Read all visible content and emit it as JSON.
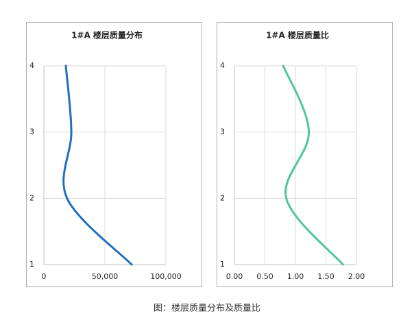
{
  "chart_data": [
    {
      "type": "line",
      "title": "1#A 楼层质量分布",
      "y": [
        1,
        2,
        3,
        4
      ],
      "series": [
        {
          "color": "#1f6fbf",
          "values": [
            72000,
            19000,
            22500,
            18000
          ]
        }
      ],
      "xlim": [
        0,
        100000
      ],
      "xticks": [
        0,
        {
          "value": 50000,
          "label": "50,000"
        },
        {
          "value": 100000,
          "label": "100,000"
        }
      ],
      "ylim": [
        1,
        4
      ],
      "yticks": [
        1,
        2,
        3,
        4
      ],
      "grid": true
    },
    {
      "type": "line",
      "title": "1#A 楼层质量比",
      "y": [
        1,
        2,
        3,
        4
      ],
      "series": [
        {
          "color": "#4fc4a0",
          "values": [
            1.78,
            0.85,
            1.22,
            0.8
          ]
        }
      ],
      "xlim": [
        0,
        2
      ],
      "xticks": [
        {
          "value": 0,
          "label": "0.00"
        },
        {
          "value": 0.5,
          "label": "0.50"
        },
        {
          "value": 1,
          "label": "1.00"
        },
        {
          "value": 1.5,
          "label": "1.50"
        },
        {
          "value": 2,
          "label": "2.00"
        }
      ],
      "ylim": [
        1,
        4
      ],
      "yticks": [
        1,
        2,
        3,
        4
      ],
      "grid": true
    }
  ],
  "caption": "图：楼层质量分布及质量比"
}
